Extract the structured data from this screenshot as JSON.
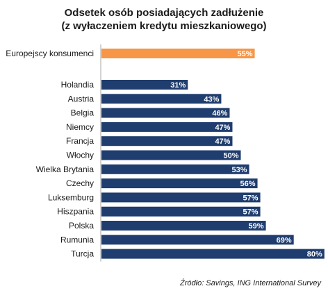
{
  "title_line1": "Odsetek osób posiadających zadłużenie",
  "title_line2": "(z wyłaczeniem kredytu mieszkaniowego)",
  "source": "Źródło: Savings, ING International Survey",
  "chart_data": {
    "type": "bar",
    "orientation": "horizontal",
    "title": "Odsetek osób posiadających zadłużenie (z wyłaczeniem kredytu mieszkaniowego)",
    "categories": [
      "Europejscy konsumenci",
      "Holandia",
      "Austria",
      "Belgia",
      "Niemcy",
      "Francja",
      "Włochy",
      "Wielka Brytania",
      "Czechy",
      "Luksemburg",
      "Hiszpania",
      "Polska",
      "Rumunia",
      "Turcja"
    ],
    "values": [
      55,
      31,
      43,
      46,
      47,
      47,
      50,
      53,
      56,
      57,
      57,
      59,
      69,
      80
    ],
    "value_labels": [
      "55%",
      "31%",
      "43%",
      "46%",
      "47%",
      "47%",
      "50%",
      "53%",
      "56%",
      "57%",
      "57%",
      "59%",
      "69%",
      "80%"
    ],
    "highlight_index": 0,
    "colors": {
      "highlight": "#F79646",
      "bar": "#1F3D6E",
      "label": "#ffffff",
      "axis": "#a6a6a6"
    },
    "xlim": [
      0,
      80
    ],
    "grid": false,
    "legend": "none"
  }
}
